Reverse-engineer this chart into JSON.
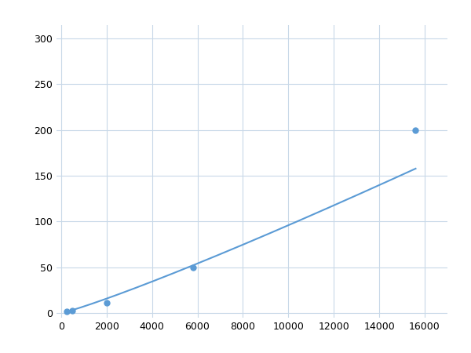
{
  "x": [
    244,
    500,
    2000,
    5800,
    15600
  ],
  "y": [
    2,
    3,
    11,
    50,
    200
  ],
  "line_color": "#5b9bd5",
  "marker_color": "#5b9bd5",
  "marker_size": 5,
  "line_width": 1.5,
  "xlim": [
    -200,
    17000
  ],
  "ylim": [
    -5,
    315
  ],
  "xticks": [
    0,
    2000,
    4000,
    6000,
    8000,
    10000,
    12000,
    14000,
    16000
  ],
  "yticks": [
    0,
    50,
    100,
    150,
    200,
    250,
    300
  ],
  "background_color": "#ffffff",
  "grid_color": "#c8d8e8",
  "figsize": [
    6.0,
    4.5
  ],
  "dpi": 100
}
